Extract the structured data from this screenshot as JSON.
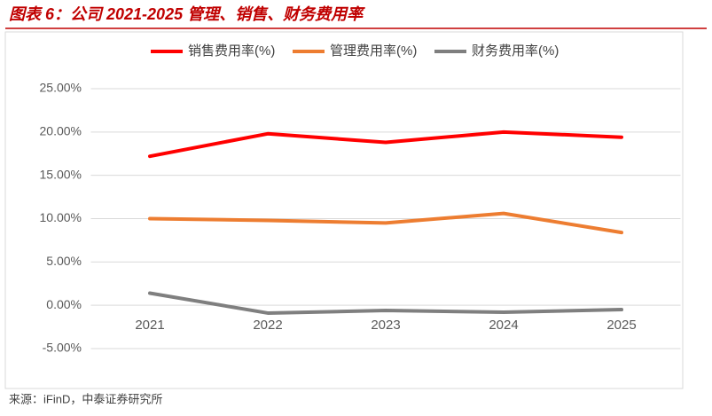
{
  "title": "图表 6：公司 2021-2025 管理、销售、财务费用率",
  "source": "来源：iFinD，中泰证券研究所",
  "chart_data": {
    "type": "line",
    "categories": [
      "2021",
      "2022",
      "2023",
      "2024",
      "2025"
    ],
    "series": [
      {
        "name": "销售费用率(%)",
        "color": "#ff0000",
        "values": [
          17.2,
          19.8,
          18.8,
          20.0,
          19.4
        ]
      },
      {
        "name": "管理费用率(%)",
        "color": "#ed7d31",
        "values": [
          10.0,
          9.8,
          9.5,
          10.6,
          8.4
        ]
      },
      {
        "name": "财务费用率(%)",
        "color": "#7f7f7f",
        "values": [
          1.4,
          -0.9,
          -0.6,
          -0.8,
          -0.5
        ]
      }
    ],
    "ylim": [
      -5,
      25
    ],
    "yticks": [
      {
        "value": -5,
        "label": "-5.00%"
      },
      {
        "value": 0,
        "label": "0.00%"
      },
      {
        "value": 5,
        "label": "5.00%"
      },
      {
        "value": 10,
        "label": "10.00%"
      },
      {
        "value": 15,
        "label": "15.00%"
      },
      {
        "value": 20,
        "label": "20.00%"
      },
      {
        "value": 25,
        "label": "25.00%"
      }
    ],
    "grid": true,
    "legend": "top"
  }
}
